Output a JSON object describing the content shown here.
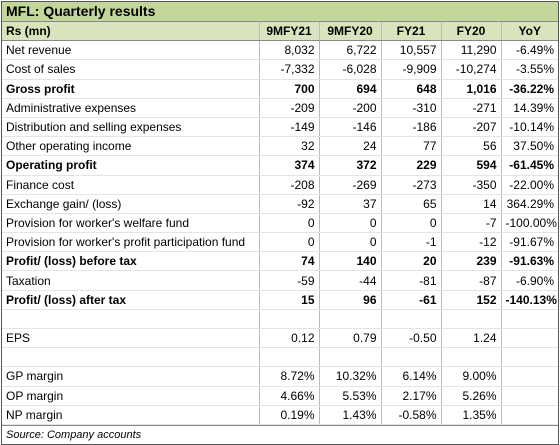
{
  "title": "MFL: Quarterly results",
  "table": {
    "header": [
      "Rs (mn)",
      "9MFY21",
      "9MFY20",
      "FY21",
      "FY20",
      "YoY"
    ],
    "rows": [
      {
        "label": "Net revenue",
        "values": [
          "8,032",
          "6,722",
          "10,557",
          "11,290",
          "-6.49%"
        ]
      },
      {
        "label": "Cost of sales",
        "values": [
          "-7,332",
          "-6,028",
          "-9,909",
          "-10,274",
          "-3.55%"
        ]
      },
      {
        "label": "Gross profit",
        "values": [
          "700",
          "694",
          "648",
          "1,016",
          "-36.22%"
        ],
        "bold": true
      },
      {
        "label": "Administrative expenses",
        "values": [
          "-209",
          "-200",
          "-310",
          "-271",
          "14.39%"
        ]
      },
      {
        "label": "Distribution and selling expenses",
        "values": [
          "-149",
          "-146",
          "-186",
          "-207",
          "-10.14%"
        ]
      },
      {
        "label": "Other operating income",
        "values": [
          "32",
          "24",
          "77",
          "56",
          "37.50%"
        ]
      },
      {
        "label": "Operating profit",
        "values": [
          "374",
          "372",
          "229",
          "594",
          "-61.45%"
        ],
        "bold": true
      },
      {
        "label": "Finance cost",
        "values": [
          "-208",
          "-269",
          "-273",
          "-350",
          "-22.00%"
        ]
      },
      {
        "label": "Exchange gain/ (loss)",
        "values": [
          "-92",
          "37",
          "65",
          "14",
          "364.29%"
        ]
      },
      {
        "label": "Provision for worker's welfare fund",
        "values": [
          "0",
          "0",
          "0",
          "-7",
          "-100.00%"
        ]
      },
      {
        "label": "Provision for worker's profit participation fund",
        "values": [
          "0",
          "0",
          "-1",
          "-12",
          "-91.67%"
        ]
      },
      {
        "label": "Profit/ (loss) before tax",
        "values": [
          "74",
          "140",
          "20",
          "239",
          "-91.63%"
        ],
        "bold": true
      },
      {
        "label": "Taxation",
        "values": [
          "-59",
          "-44",
          "-81",
          "-87",
          "-6.90%"
        ]
      },
      {
        "label": "Profit/ (loss) after tax",
        "values": [
          "15",
          "96",
          "-61",
          "152",
          "-140.13%"
        ],
        "bold": true
      },
      {
        "label": "EPS",
        "values": [
          "0.12",
          "0.79",
          "-0.50",
          "1.24"
        ],
        "gap_before": true
      },
      {
        "label": "GP margin",
        "values": [
          "8.72%",
          "10.32%",
          "6.14%",
          "9.00%"
        ],
        "gap_before": true
      },
      {
        "label": "OP margin",
        "values": [
          "4.66%",
          "5.53%",
          "2.17%",
          "5.26%"
        ]
      },
      {
        "label": "NP margin",
        "values": [
          "0.19%",
          "1.43%",
          "-0.58%",
          "1.35%"
        ]
      }
    ]
  },
  "source": "Source: Company accounts"
}
